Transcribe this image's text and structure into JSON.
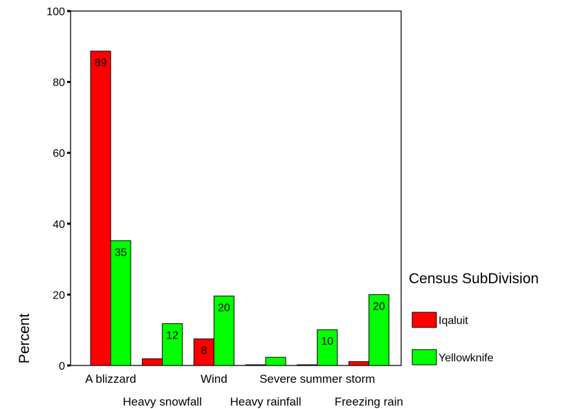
{
  "chart_data": {
    "type": "bar",
    "ylabel": "Percent",
    "ylim": [
      0,
      100
    ],
    "yticks": [
      0,
      20,
      40,
      60,
      80,
      100
    ],
    "categories": [
      "A blizzard",
      "Heavy snowfall",
      "Wind",
      "Heavy rainfall",
      "Severe summer storm",
      "Freezing rain"
    ],
    "legend": {
      "title": "Census SubDivision",
      "placement": "right"
    },
    "series": [
      {
        "name": "Iqaluit",
        "color": "#ff0000",
        "values": [
          88.7,
          1.9,
          7.5,
          0.2,
          0.2,
          1.1
        ],
        "labels": [
          "89",
          "",
          "8",
          "",
          "",
          ""
        ]
      },
      {
        "name": "Yellowknife",
        "color": "#00ff00",
        "values": [
          35.2,
          11.8,
          19.6,
          2.3,
          10.1,
          20.0
        ],
        "labels": [
          "35",
          "12",
          "20",
          "",
          "10",
          "20"
        ]
      }
    ]
  }
}
